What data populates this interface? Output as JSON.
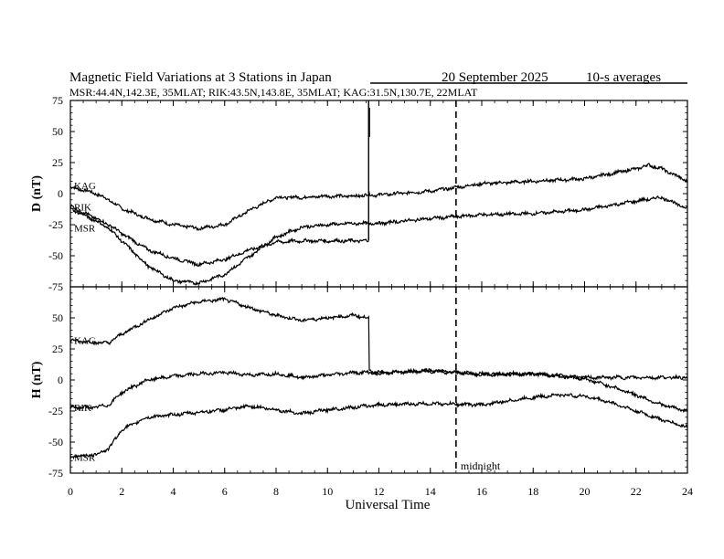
{
  "header": {
    "title": "Magnetic Field Variations at 3 Stations in Japan",
    "date": "20 September 2025",
    "averaging": "10-s averages",
    "stations_line": "MSR:44.4N,142.3E, 35MLAT;  RIK:43.5N,143.8E, 35MLAT;  KAG:31.5N,130.7E, 22MLAT"
  },
  "chart_data": [
    {
      "type": "line",
      "panel": "top",
      "ylabel": "D (nT)",
      "xlabel": "Universal Time",
      "xlim": [
        0,
        24
      ],
      "ylim": [
        -75,
        75
      ],
      "x_ticks": [
        0,
        2,
        4,
        6,
        8,
        10,
        12,
        14,
        16,
        18,
        20,
        22,
        24
      ],
      "y_ticks": [
        -75,
        -50,
        -25,
        0,
        25,
        50,
        75
      ],
      "series": [
        {
          "name": "KAG",
          "x": [
            0,
            0.5,
            1,
            1.5,
            2,
            3,
            4,
            5,
            6,
            7,
            8,
            9,
            10,
            11,
            11.6,
            12,
            14,
            16,
            18,
            20,
            22,
            22.5,
            23,
            24
          ],
          "y": [
            5,
            3,
            0,
            -5,
            -12,
            -20,
            -25,
            -28,
            -25,
            -13,
            -3,
            -3,
            -2,
            -2,
            -1,
            -1,
            2,
            8,
            10,
            12,
            20,
            23,
            20,
            10
          ]
        },
        {
          "name": "MSR",
          "x": [
            0,
            0.5,
            1,
            1.5,
            2,
            3,
            4,
            5,
            6,
            7,
            8,
            9,
            10,
            11,
            11.6
          ],
          "y": [
            -10,
            -15,
            -20,
            -25,
            -32,
            -45,
            -52,
            -57,
            -53,
            -45,
            -39,
            -38,
            -38,
            -38,
            -38
          ]
        },
        {
          "name": "RIK",
          "x": [
            0,
            0.5,
            1,
            1.5,
            2,
            3,
            4,
            5,
            6,
            7,
            8,
            9,
            10,
            11,
            12,
            14,
            16,
            18,
            20,
            22,
            23,
            24
          ],
          "y": [
            -12,
            -17,
            -22,
            -28,
            -38,
            -58,
            -70,
            -72,
            -65,
            -50,
            -35,
            -27,
            -25,
            -24,
            -24,
            -20,
            -17,
            -16,
            -13,
            -6,
            -3,
            -12
          ]
        }
      ],
      "annotations": [
        {
          "text": "midnight",
          "x": 15,
          "style": "dashed vertical line"
        }
      ]
    },
    {
      "type": "line",
      "panel": "bottom",
      "ylabel": "H (nT)",
      "xlabel": "Universal Time",
      "xlim": [
        0,
        24
      ],
      "ylim": [
        -75,
        75
      ],
      "x_ticks": [
        0,
        2,
        4,
        6,
        8,
        10,
        12,
        14,
        16,
        18,
        20,
        22,
        24
      ],
      "y_ticks": [
        -75,
        -50,
        -25,
        0,
        25,
        50
      ],
      "series": [
        {
          "name": "KAG",
          "x": [
            0,
            1,
            1.5,
            2,
            3,
            4,
            5,
            6,
            7,
            8,
            9,
            10,
            11,
            11.6,
            11.61,
            12,
            14,
            16,
            18,
            20,
            21,
            22,
            23,
            24
          ],
          "y": [
            32,
            30,
            30,
            37,
            48,
            58,
            63,
            65,
            58,
            52,
            48,
            50,
            52,
            50,
            7,
            5,
            8,
            4,
            5,
            2,
            2,
            2,
            2,
            2
          ]
        },
        {
          "name": "RIK",
          "x": [
            0,
            1,
            1.5,
            2,
            3,
            4,
            5,
            6,
            7,
            8,
            9,
            10,
            11,
            12,
            14,
            16,
            18,
            19,
            20,
            21,
            22,
            23,
            24
          ],
          "y": [
            -22,
            -22,
            -20,
            -10,
            0,
            3,
            5,
            6,
            4,
            5,
            2,
            4,
            6,
            6,
            7,
            5,
            5,
            3,
            1,
            -5,
            -12,
            -20,
            -25
          ]
        },
        {
          "name": "MSR",
          "x": [
            0,
            1,
            1.5,
            2,
            3,
            4,
            5,
            6,
            7,
            8,
            9,
            10,
            11,
            12,
            14,
            16,
            18,
            19,
            20,
            21,
            22,
            23,
            24
          ],
          "y": [
            -62,
            -60,
            -55,
            -40,
            -30,
            -28,
            -26,
            -24,
            -21,
            -24,
            -27,
            -24,
            -22,
            -20,
            -19,
            -20,
            -14,
            -12,
            -13,
            -18,
            -25,
            -32,
            -38
          ]
        }
      ],
      "annotations": []
    }
  ]
}
